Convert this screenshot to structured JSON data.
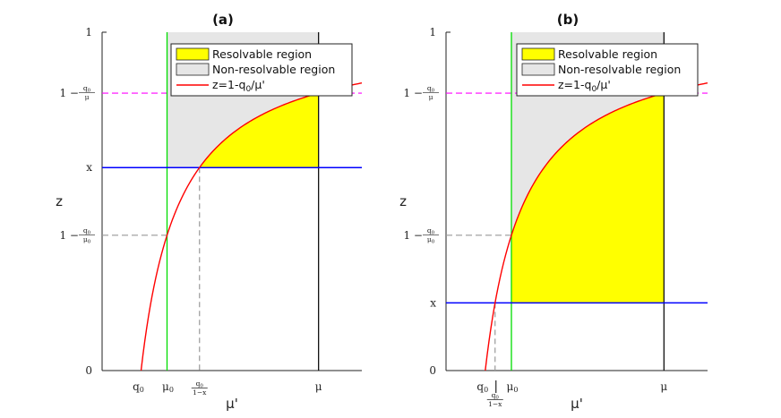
{
  "chart_data": [
    {
      "type": "area",
      "title": "(a)",
      "xlabel": "μ'",
      "ylabel": "z",
      "ylim": [
        0,
        1
      ],
      "params": {
        "q0": 0.18,
        "mu0": 0.3,
        "mu": 1.0,
        "x": 0.6
      },
      "x_ticks": [
        "q0",
        "μ0",
        "q0/(1−x)",
        "μ"
      ],
      "y_ticks": [
        "0",
        "1 − q0/μ0",
        "x",
        "1 − q0/μ",
        "1"
      ],
      "legend": {
        "position": "top-right",
        "entries": [
          "Resolvable region",
          "Non-resolvable region",
          "z=1-q0/μ'"
        ]
      },
      "colors": {
        "resolvable": "#ffff00",
        "non_resolvable": "#e6e6e6",
        "curve": "#ff0000",
        "x_line": "#0000ff",
        "mu0_line": "#00dd00",
        "top_dash": "#ff00ff",
        "guides": "#999999"
      }
    },
    {
      "type": "area",
      "title": "(b)",
      "xlabel": "μ'",
      "ylabel": "z",
      "ylim": [
        0,
        1
      ],
      "params": {
        "q0": 0.18,
        "mu0": 0.3,
        "mu": 1.0,
        "x": 0.2
      },
      "x_ticks": [
        "q0",
        "μ0",
        "q0/(1−x)",
        "μ"
      ],
      "y_ticks": [
        "0",
        "x",
        "1 − q0/μ0",
        "1 − q0/μ",
        "1"
      ],
      "legend": {
        "position": "top-right",
        "entries": [
          "Resolvable region",
          "Non-resolvable region",
          "z=1-q0/μ'"
        ]
      },
      "colors": {
        "resolvable": "#ffff00",
        "non_resolvable": "#e6e6e6",
        "curve": "#ff0000",
        "x_line": "#0000ff",
        "mu0_line": "#00dd00",
        "top_dash": "#ff00ff",
        "guides": "#999999"
      }
    }
  ]
}
